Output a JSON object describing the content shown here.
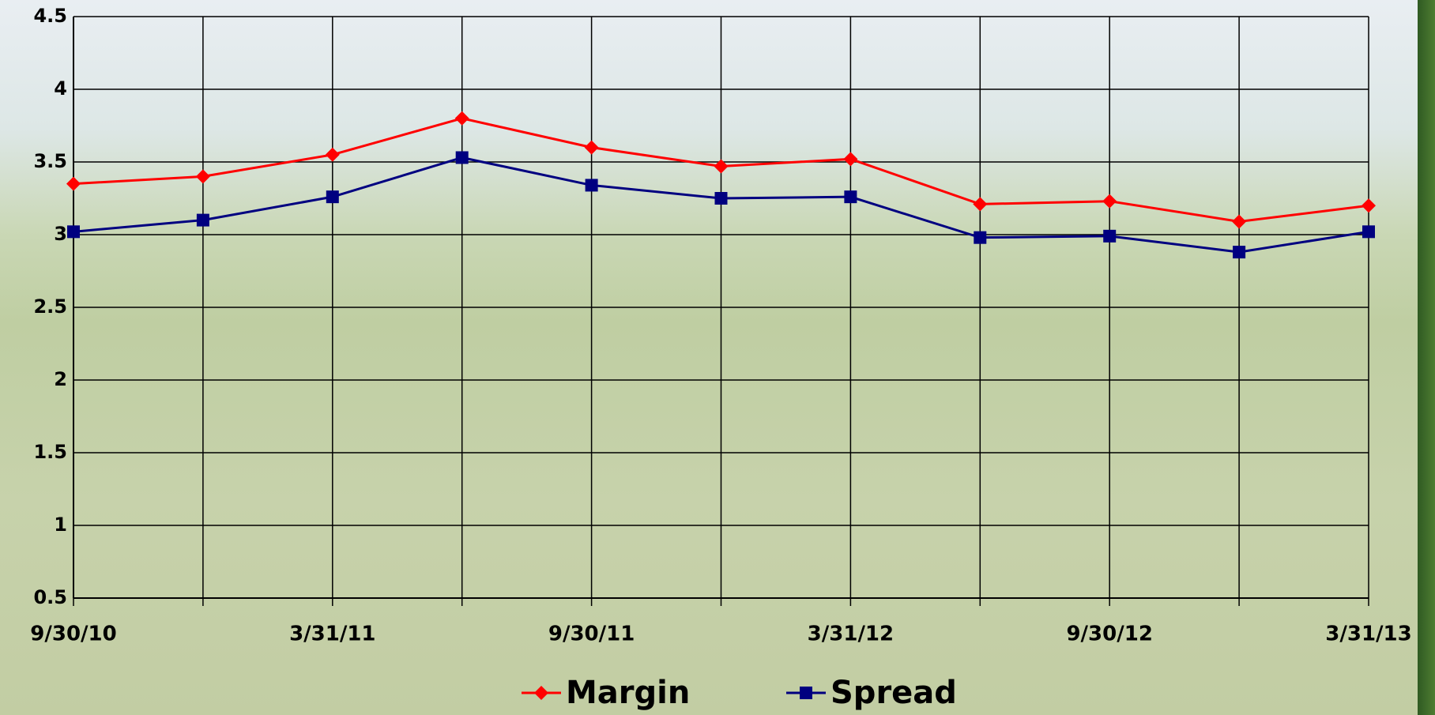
{
  "chart_data": {
    "type": "line",
    "categories": [
      "9/30/10",
      null,
      "3/31/11",
      null,
      "9/30/11",
      null,
      "3/31/12",
      null,
      "9/30/12",
      null,
      "3/31/13"
    ],
    "series": [
      {
        "name": "Margin",
        "color": "#ff0000",
        "marker": "diamond",
        "values": [
          3.35,
          3.4,
          3.55,
          3.8,
          3.6,
          3.47,
          3.52,
          3.21,
          3.23,
          3.09,
          3.2
        ]
      },
      {
        "name": "Spread",
        "color": "#000080",
        "marker": "square",
        "values": [
          3.02,
          3.1,
          3.26,
          3.53,
          3.34,
          3.25,
          3.26,
          2.98,
          2.99,
          2.88,
          3.02
        ]
      }
    ],
    "ylim": [
      0.5,
      4.5
    ],
    "yticks": [
      0.5,
      1,
      1.5,
      2,
      2.5,
      3,
      3.5,
      4,
      4.5
    ],
    "grid": true,
    "legend": "bottom"
  }
}
